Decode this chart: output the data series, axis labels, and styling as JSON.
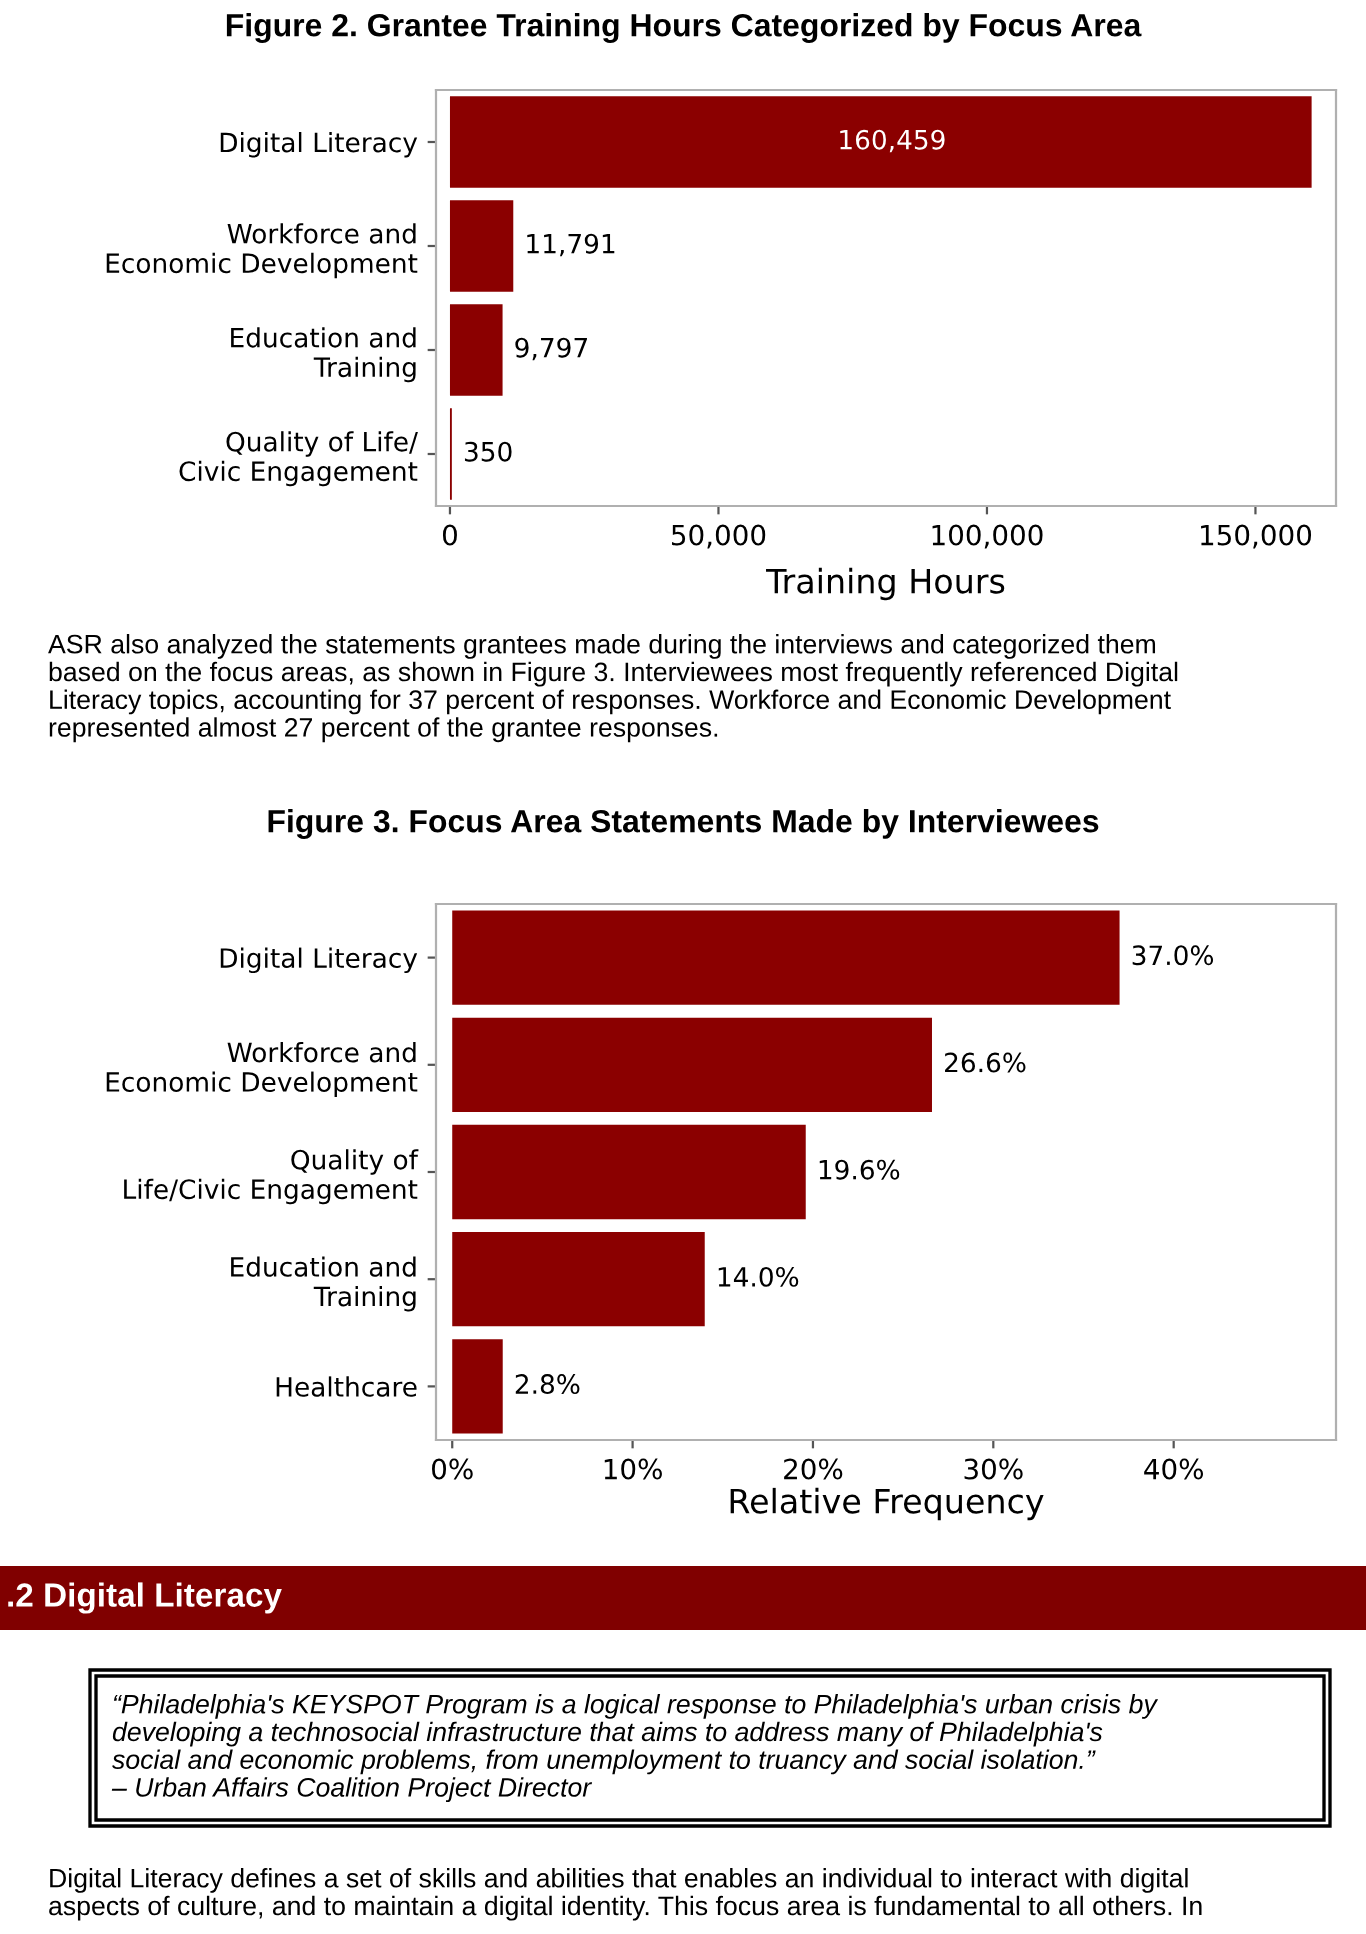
{
  "chart_data": [
    {
      "type": "bar",
      "orientation": "horizontal",
      "title": "Figure 2. Grantee Training Hours Categorized by Focus Area",
      "xlabel": "Training Hours",
      "categories": [
        "Digital Literacy",
        "Workforce and\nEconomic Development",
        "Education and\nTraining",
        "Quality of Life/\nCivic Engagement"
      ],
      "values": [
        160459,
        11791,
        9797,
        350
      ],
      "value_labels": [
        "160,459",
        "11,791",
        "9,797",
        "350"
      ],
      "color": "#8b0000",
      "xlim": [
        -2600,
        165000
      ],
      "xticks": [
        {
          "value": 0,
          "label": "0"
        },
        {
          "value": 50000,
          "label": "50,000"
        },
        {
          "value": 100000,
          "label": "100,000"
        },
        {
          "value": 150000,
          "label": "150,000"
        }
      ],
      "grid": false,
      "annotations": [
        "ASR also analyzed the statements grantees made during the interviews and categorized them\nbased on the focus areas, as shown in Figure 3. Interviewees most frequently referenced Digital\nLiteracy topics, accounting for 37 percent of responses. Workforce and Economic Development\nrepresented almost 27 percent of the grantee responses."
      ]
    },
    {
      "type": "bar",
      "orientation": "horizontal",
      "title": "Figure 3. Focus Area Statements Made by Interviewees",
      "xlabel": "Relative Frequency",
      "categories": [
        "Digital Literacy",
        "Workforce and\nEconomic Development",
        "Quality of\nLife/Civic Engagement",
        "Education and\nTraining",
        "Healthcare"
      ],
      "values": [
        37.0,
        26.6,
        19.6,
        14.0,
        2.8
      ],
      "value_labels": [
        "37.0%",
        "26.6%",
        "19.6%",
        "14.0%",
        "2.8%"
      ],
      "color": "#8b0000",
      "xlim": [
        -0.9,
        49
      ],
      "xticks": [
        {
          "value": 0,
          "label": "0%"
        },
        {
          "value": 10,
          "label": "10%"
        },
        {
          "value": 20,
          "label": "20%"
        },
        {
          "value": 30,
          "label": "30%"
        },
        {
          "value": 40,
          "label": "40%"
        }
      ],
      "grid": false
    },
    {
      "type": "other",
      "title": ".2 Digital Literacy",
      "annotations": [
        "“Philadelphia's KEYSPOT Program is a logical response to Philadelphia's urban crisis by\ndeveloping a technosocial infrastructure that aims to address many of Philadelphia's\nsocial and economic problems, from unemployment to truancy and social isolation.”\n– Urban Affairs Coalition Project Director",
        "Digital Literacy defines a set of skills and abilities that enables an individual to interact with digital\naspects of culture, and to maintain a digital identity. This focus area is fundamental to all others. In"
      ]
    }
  ]
}
